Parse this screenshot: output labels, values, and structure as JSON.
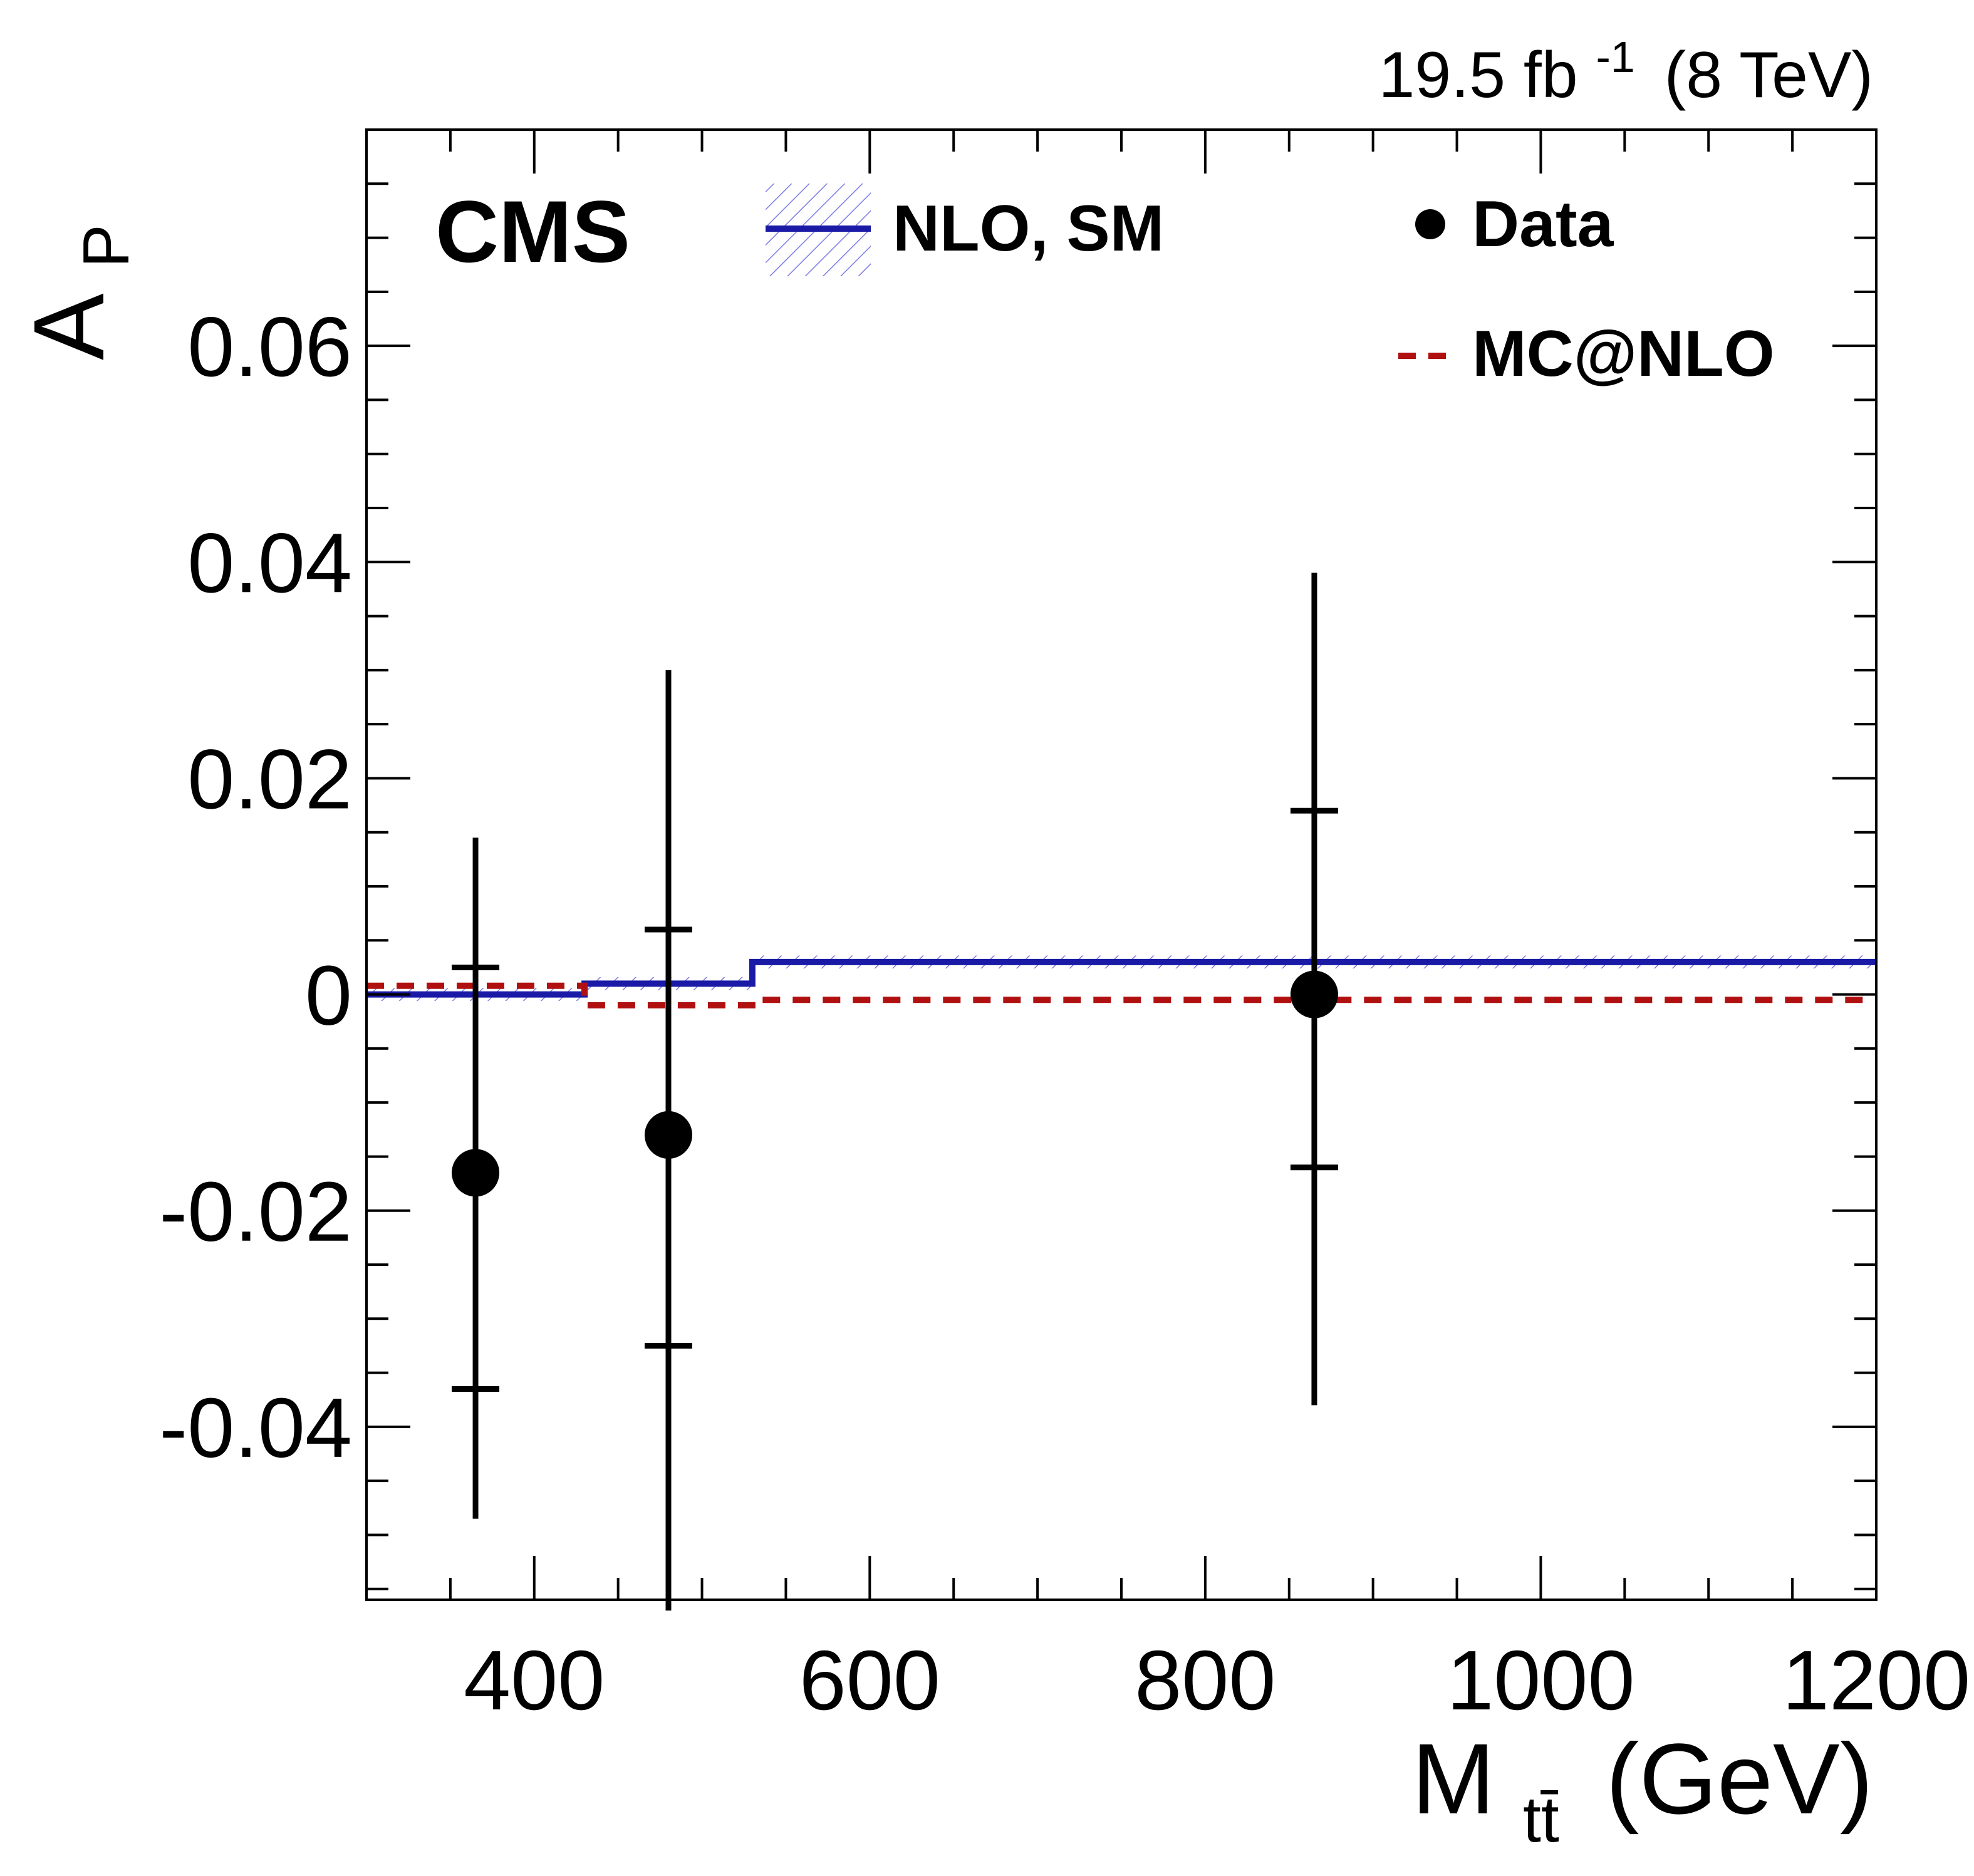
{
  "chart_data": {
    "type": "scatter",
    "title": "",
    "experiment_label": "CMS",
    "lumi_label": {
      "value": "19.5",
      "unit": "fb",
      "exponent": "-1",
      "energy": "(8 TeV)"
    },
    "xlabel": {
      "symbol": "M",
      "subscript": "tt̄",
      "unit": "(GeV)"
    },
    "ylabel": {
      "symbol": "A",
      "subscript": "P"
    },
    "xlim": [
      300,
      1200
    ],
    "ylim": [
      -0.056,
      0.08
    ],
    "x_ticks": [
      400,
      600,
      800,
      1000,
      1200
    ],
    "x_tick_labels": [
      "400",
      "600",
      "800",
      "1000",
      "1200"
    ],
    "y_ticks": [
      -0.04,
      -0.02,
      0,
      0.02,
      0.04,
      0.06
    ],
    "y_tick_labels": [
      "-0.04",
      "-0.02",
      "0",
      "0.02",
      "0.04",
      "0.06"
    ],
    "grid": false,
    "legend": {
      "placement": "top",
      "entries": [
        {
          "label": "NLO, SM",
          "style": "solid-hatched",
          "color": "#1a1aa6"
        },
        {
          "label": "Data",
          "style": "marker",
          "color": "#000000"
        },
        {
          "label": "MC@NLO",
          "style": "dashed",
          "color": "#b01010"
        }
      ]
    },
    "series": [
      {
        "name": "Data",
        "kind": "points",
        "color": "#000000",
        "points": [
          {
            "x": 365,
            "y": -0.0165,
            "stat_low": -0.0365,
            "stat_high": 0.0025,
            "tot_low": -0.0485,
            "tot_high": 0.0145
          },
          {
            "x": 480,
            "y": -0.013,
            "stat_low": -0.0325,
            "stat_high": 0.006,
            "tot_low": -0.057,
            "tot_high": 0.03
          },
          {
            "x": 865,
            "y": 0.0,
            "stat_low": -0.016,
            "stat_high": 0.017,
            "tot_low": -0.038,
            "tot_high": 0.039
          }
        ]
      },
      {
        "name": "NLO, SM",
        "kind": "step",
        "color": "#1a1aa6",
        "hatch_color": "#7b7be6",
        "bins": [
          300,
          430,
          530,
          1200
        ],
        "values": [
          0.0,
          0.001,
          0.003
        ],
        "band": 0.0006
      },
      {
        "name": "MC@NLO",
        "kind": "step-dashed",
        "color": "#b01010",
        "bins": [
          300,
          430,
          530,
          1200
        ],
        "values": [
          0.0008,
          -0.001,
          -0.0005
        ]
      }
    ]
  }
}
